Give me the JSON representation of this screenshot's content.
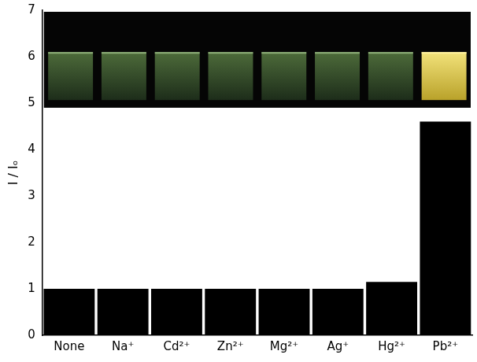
{
  "chart_data": {
    "type": "bar",
    "y_label": "I / Iₒ",
    "categories": [
      "None",
      "Na⁺",
      "Cd²⁺",
      "Zn²⁺",
      "Mg²⁺",
      "Ag⁺",
      "Hg²⁺",
      "Pb²⁺"
    ],
    "values": [
      1.0,
      1.0,
      1.0,
      1.0,
      1.0,
      1.0,
      1.15,
      4.6
    ],
    "color": "#000000",
    "ylim": [
      0,
      7
    ],
    "yticks": [
      0,
      1,
      2,
      3,
      4,
      5,
      6,
      7
    ],
    "grid": false
  }
}
